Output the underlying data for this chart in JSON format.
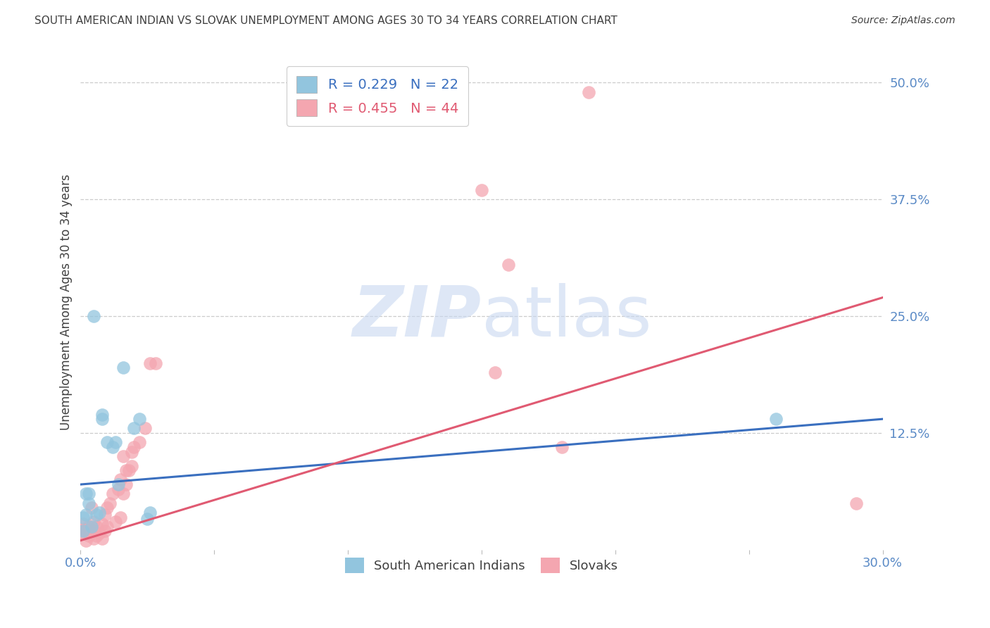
{
  "title": "SOUTH AMERICAN INDIAN VS SLOVAK UNEMPLOYMENT AMONG AGES 30 TO 34 YEARS CORRELATION CHART",
  "source": "Source: ZipAtlas.com",
  "ylabel": "Unemployment Among Ages 30 to 34 years",
  "xlim": [
    0.0,
    0.3
  ],
  "ylim": [
    0.0,
    0.53
  ],
  "xticks": [
    0.0,
    0.05,
    0.1,
    0.15,
    0.2,
    0.25,
    0.3
  ],
  "xticklabels": [
    "0.0%",
    "",
    "",
    "",
    "",
    "",
    "30.0%"
  ],
  "yticks_right": [
    0.125,
    0.25,
    0.375,
    0.5
  ],
  "yticklabels_right": [
    "12.5%",
    "25.0%",
    "37.5%",
    "50.0%"
  ],
  "blue_R": 0.229,
  "blue_N": 22,
  "pink_R": 0.455,
  "pink_N": 44,
  "blue_color": "#92c5de",
  "pink_color": "#f4a6b0",
  "blue_line_color": "#3a6fbf",
  "pink_line_color": "#e05a72",
  "watermark": "ZIPatlas",
  "watermark_color": "#c8d8f0",
  "legend_label_blue": "South American Indians",
  "legend_label_pink": "Slovaks",
  "blue_scatter_x": [
    0.001,
    0.001,
    0.002,
    0.002,
    0.003,
    0.003,
    0.004,
    0.005,
    0.006,
    0.007,
    0.008,
    0.008,
    0.01,
    0.012,
    0.013,
    0.014,
    0.016,
    0.02,
    0.022,
    0.025,
    0.026,
    0.26
  ],
  "blue_scatter_y": [
    0.02,
    0.035,
    0.038,
    0.06,
    0.05,
    0.06,
    0.025,
    0.25,
    0.038,
    0.04,
    0.14,
    0.145,
    0.115,
    0.11,
    0.115,
    0.07,
    0.195,
    0.13,
    0.14,
    0.033,
    0.04,
    0.14
  ],
  "pink_scatter_x": [
    0.001,
    0.001,
    0.001,
    0.002,
    0.002,
    0.003,
    0.003,
    0.004,
    0.004,
    0.005,
    0.005,
    0.006,
    0.006,
    0.007,
    0.008,
    0.008,
    0.009,
    0.009,
    0.01,
    0.01,
    0.011,
    0.012,
    0.013,
    0.014,
    0.015,
    0.015,
    0.016,
    0.016,
    0.017,
    0.017,
    0.018,
    0.019,
    0.019,
    0.02,
    0.022,
    0.024,
    0.026,
    0.028,
    0.15,
    0.155,
    0.16,
    0.18,
    0.19,
    0.29
  ],
  "pink_scatter_y": [
    0.018,
    0.022,
    0.028,
    0.01,
    0.02,
    0.015,
    0.025,
    0.018,
    0.045,
    0.012,
    0.03,
    0.015,
    0.025,
    0.018,
    0.012,
    0.028,
    0.02,
    0.038,
    0.025,
    0.045,
    0.05,
    0.06,
    0.03,
    0.065,
    0.035,
    0.075,
    0.06,
    0.1,
    0.07,
    0.085,
    0.085,
    0.09,
    0.105,
    0.11,
    0.115,
    0.13,
    0.2,
    0.2,
    0.385,
    0.19,
    0.305,
    0.11,
    0.49,
    0.05
  ],
  "blue_line_x": [
    0.0,
    0.3
  ],
  "blue_line_y": [
    0.07,
    0.14
  ],
  "pink_line_x": [
    0.0,
    0.3
  ],
  "pink_line_y": [
    0.01,
    0.27
  ],
  "background_color": "#ffffff",
  "grid_color": "#cccccc",
  "title_color": "#404040",
  "axis_tick_color": "#5a8ac6"
}
